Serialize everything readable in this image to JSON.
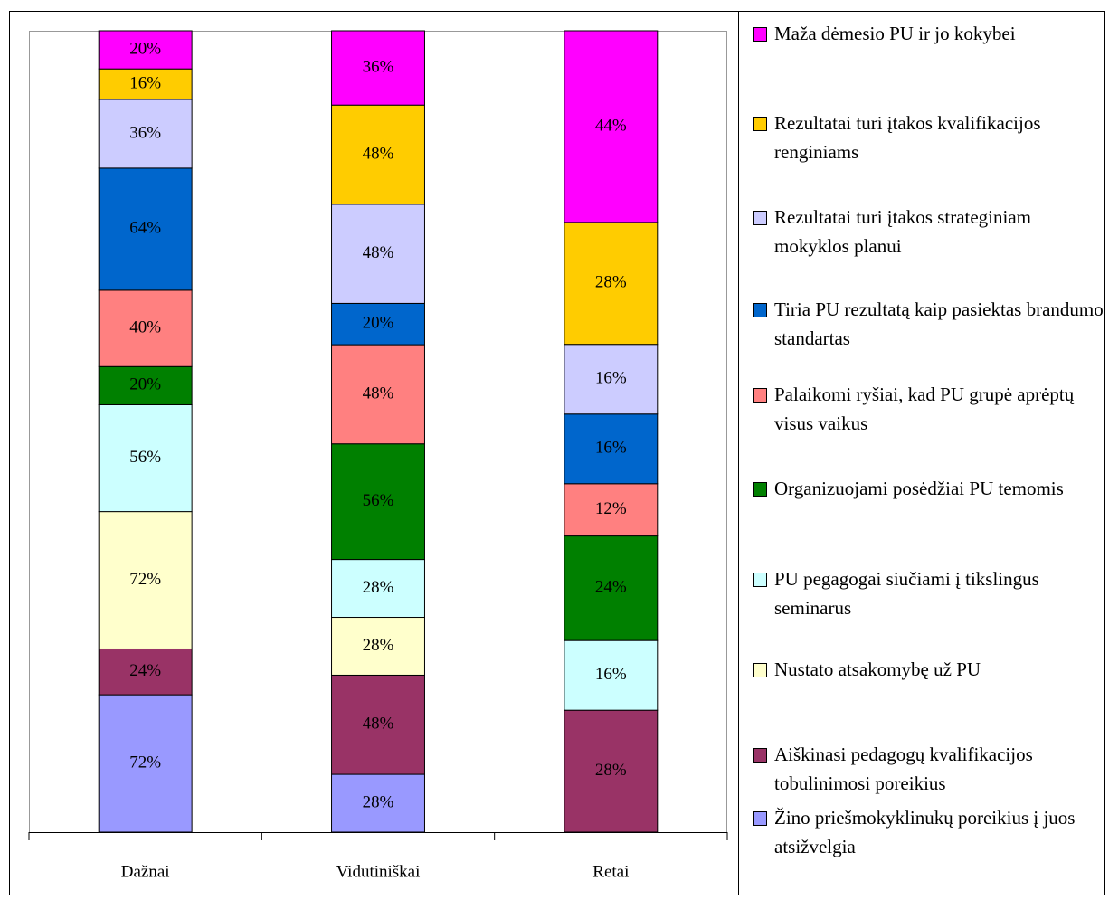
{
  "chart_data": {
    "type": "bar",
    "stacked": "percent",
    "categories": [
      "Dažnai",
      "Vidutiniškai",
      "Retai"
    ],
    "series": [
      {
        "name": "Žino priešmokyklinukų poreikius į juos atsižvelgia",
        "color": "#9999ff",
        "values": [
          72,
          28,
          null
        ],
        "value_labels": [
          "72%",
          "28%",
          null
        ]
      },
      {
        "name": "Aiškinasi pedagogų kvalifikacijos tobulinimosi poreikius",
        "color": "#993366",
        "values": [
          24,
          48,
          28
        ],
        "value_labels": [
          "24%",
          "48%",
          "28%"
        ]
      },
      {
        "name": "Nustato atsakomybę už PU",
        "color": "#ffffcc",
        "values": [
          72,
          28,
          null
        ],
        "value_labels": [
          "72%",
          "28%",
          null
        ]
      },
      {
        "name": "PU pegagogai siučiami į tikslingus seminarus",
        "color": "#ccffff",
        "values": [
          56,
          28,
          16
        ],
        "value_labels": [
          "56%",
          "28%",
          "16%"
        ]
      },
      {
        "name": "Organizuojami posėdžiai PU temomis",
        "color": "#008000",
        "values": [
          20,
          56,
          24
        ],
        "value_labels": [
          "20%",
          "56%",
          "24%"
        ]
      },
      {
        "name": "Palaikomi ryšiai, kad PU grupė aprėptų visus vaikus",
        "color": "#ff8080",
        "values": [
          40,
          48,
          12
        ],
        "value_labels": [
          "40%",
          "48%",
          "12%"
        ]
      },
      {
        "name": "Tiria PU rezultatą kaip pasiektas brandumo standartas",
        "color": "#0066cc",
        "values": [
          64,
          20,
          16
        ],
        "value_labels": [
          "64%",
          "20%",
          "16%"
        ]
      },
      {
        "name": "Rezultatai turi įtakos strateginiam mokyklos planui",
        "color": "#ccccff",
        "values": [
          36,
          48,
          16
        ],
        "value_labels": [
          "36%",
          "48%",
          "16%"
        ]
      },
      {
        "name": "Rezultatai turi įtakos kvalifikacijos renginiams",
        "color": "#ffcc00",
        "values": [
          16,
          48,
          28
        ],
        "value_labels": [
          "16%",
          "48%",
          "28%"
        ]
      },
      {
        "name": "Maža dėmesio PU ir jo kokybei",
        "color": "#ff00ff",
        "values": [
          20,
          36,
          44
        ],
        "value_labels": [
          "20%",
          "36%",
          "44%"
        ]
      }
    ]
  }
}
